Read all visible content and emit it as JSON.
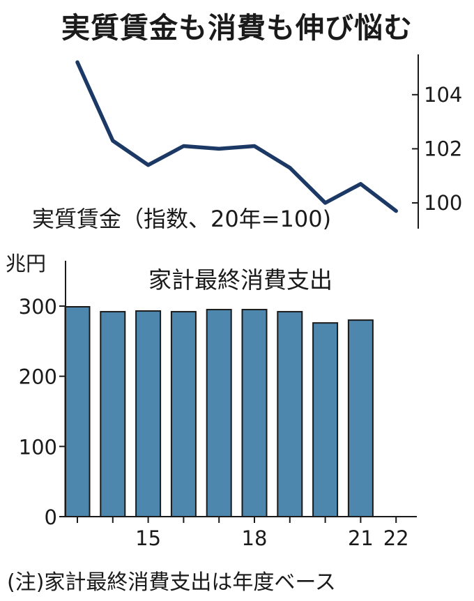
{
  "title": "実質賃金も消費も伸び悩む",
  "note": "(注)家計最終消費支出は年度ベース",
  "colors": {
    "line": "#1c3966",
    "bar": "#4e87ad",
    "bar_edge": "#1a1a1a",
    "axis": "#1a1a1a"
  },
  "chart_data": [
    {
      "type": "line",
      "label": "実質賃金（指数、20年=100)",
      "x": [
        13,
        14,
        15,
        16,
        17,
        18,
        19,
        20,
        21,
        22
      ],
      "values": [
        105.2,
        102.3,
        101.4,
        102.1,
        102.0,
        102.1,
        101.3,
        100.0,
        100.7,
        99.7
      ],
      "y_ticks": [
        100,
        102,
        104
      ],
      "y_tick_labels": [
        "100",
        "102",
        "104"
      ],
      "ylim": [
        99.2,
        105.6
      ],
      "y_axis_side": "right",
      "grid": false
    },
    {
      "type": "bar",
      "label": "家計最終消費支出",
      "unit": "兆円",
      "x": [
        13,
        14,
        15,
        16,
        17,
        18,
        19,
        20,
        21,
        22
      ],
      "values": [
        299,
        292,
        293,
        292,
        295,
        295,
        292,
        276,
        280,
        null
      ],
      "x_tick_labels": [
        {
          "x": 15,
          "label": "15"
        },
        {
          "x": 18,
          "label": "18"
        },
        {
          "x": 21,
          "label": "21"
        },
        {
          "x": 22,
          "label": "22"
        }
      ],
      "y_ticks": [
        0,
        100,
        200,
        300
      ],
      "y_tick_labels": [
        "0",
        "100",
        "200",
        "300"
      ],
      "ylim": [
        0,
        300
      ],
      "y_axis_side": "left",
      "grid": false
    }
  ]
}
